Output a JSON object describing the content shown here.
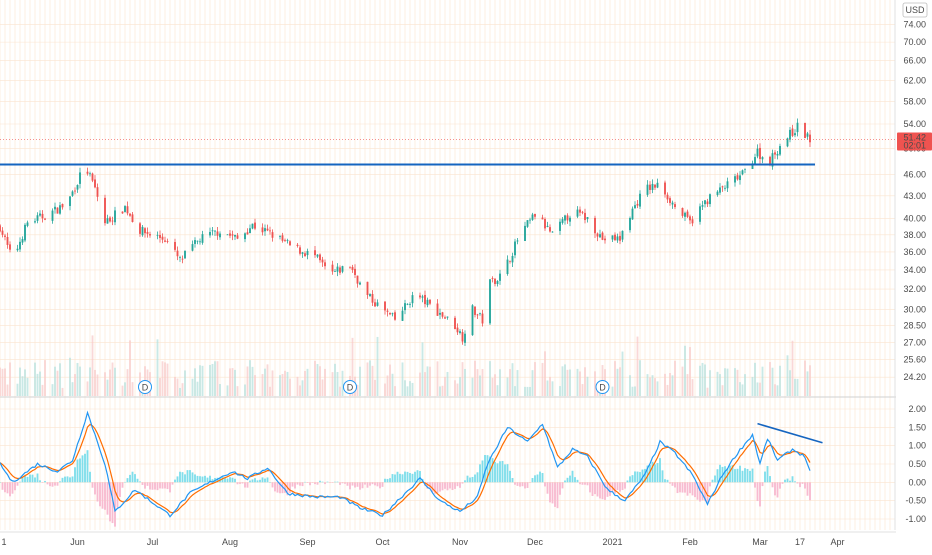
{
  "currency_label": "USD",
  "last_price_label": "51.42",
  "countdown_label": "02:01",
  "colors": {
    "up": "#26a69a",
    "down": "#ef5350",
    "trendline": "#1565c0",
    "macd_line": "#2196f3",
    "signal_line": "#ff6d00",
    "hist_up": "#80deea",
    "hist_down": "#f8bbd0",
    "price_badge": "#ef5350",
    "grid": "#fbe4cf"
  },
  "chart_data": [
    {
      "type": "candlestick",
      "title": "",
      "scale": "log",
      "ylim": [
        22.8,
        80
      ],
      "y_ticks": [
        "24.20",
        "25.60",
        "27.00",
        "28.50",
        "30.00",
        "32.00",
        "34.00",
        "36.00",
        "38.00",
        "40.00",
        "43.00",
        "46.00",
        "50.00",
        "54.00",
        "58.00",
        "62.00",
        "66.00",
        "70.00",
        "74.00"
      ],
      "x_ticks": [
        "1",
        "Jun",
        "Jul",
        "Aug",
        "Sep",
        "Oct",
        "Nov",
        "Dec",
        "2021",
        "Feb",
        "Mar",
        "17",
        "Apr"
      ],
      "anchors": [
        {
          "date": "May 1",
          "close": 39.0
        },
        {
          "date": "May 6",
          "close": 35.0
        },
        {
          "date": "May 12",
          "close": 39.5
        },
        {
          "date": "May 20",
          "close": 40.5
        },
        {
          "date": "May 28",
          "close": 42.0
        },
        {
          "date": "Jun 4",
          "close": 47.3
        },
        {
          "date": "Jun 8",
          "close": 44.0
        },
        {
          "date": "Jun 12",
          "close": 39.5
        },
        {
          "date": "Jun 20",
          "close": 41.5
        },
        {
          "date": "Jun 26",
          "close": 38.5
        },
        {
          "date": "Jul 6",
          "close": 37.5
        },
        {
          "date": "Jul 12",
          "close": 35.0
        },
        {
          "date": "Jul 20",
          "close": 37.5
        },
        {
          "date": "Jul 28",
          "close": 38.5
        },
        {
          "date": "Aug 4",
          "close": 37.5
        },
        {
          "date": "Aug 10",
          "close": 39.2
        },
        {
          "date": "Aug 18",
          "close": 38.0
        },
        {
          "date": "Aug 26",
          "close": 36.5
        },
        {
          "date": "Sep 4",
          "close": 35.5
        },
        {
          "date": "Sep 10",
          "close": 33.5
        },
        {
          "date": "Sep 18",
          "close": 34.5
        },
        {
          "date": "Sep 24",
          "close": 31.5
        },
        {
          "date": "Oct 1",
          "close": 30.0
        },
        {
          "date": "Oct 6",
          "close": 29.0
        },
        {
          "date": "Oct 14",
          "close": 31.5
        },
        {
          "date": "Oct 22",
          "close": 30.0
        },
        {
          "date": "Oct 30",
          "close": 28.5
        },
        {
          "date": "Nov 2",
          "close": 27.5
        },
        {
          "date": "Nov 6",
          "close": 30.0
        },
        {
          "date": "Nov 10",
          "close": 29.0
        },
        {
          "date": "Nov 12",
          "close": 32.5
        },
        {
          "date": "Nov 18",
          "close": 33.5
        },
        {
          "date": "Nov 25",
          "close": 38.0
        },
        {
          "date": "Dec 1",
          "close": 40.5
        },
        {
          "date": "Dec 8",
          "close": 38.0
        },
        {
          "date": "Dec 16",
          "close": 41.0
        },
        {
          "date": "Dec 22",
          "close": 40.0
        },
        {
          "date": "Dec 28",
          "close": 37.5
        },
        {
          "date": "Jan 4",
          "close": 37.5
        },
        {
          "date": "Jan 8",
          "close": 40.5
        },
        {
          "date": "Jan 14",
          "close": 44.0
        },
        {
          "date": "Jan 20",
          "close": 44.5
        },
        {
          "date": "Jan 26",
          "close": 41.5
        },
        {
          "date": "Feb 1",
          "close": 39.5
        },
        {
          "date": "Feb 8",
          "close": 42.5
        },
        {
          "date": "Feb 16",
          "close": 44.5
        },
        {
          "date": "Feb 22",
          "close": 46.0
        },
        {
          "date": "Feb 28",
          "close": 49.5
        },
        {
          "date": "Mar 4",
          "close": 47.5
        },
        {
          "date": "Mar 10",
          "close": 51.0
        },
        {
          "date": "Mar 16",
          "close": 53.5
        },
        {
          "date": "Mar 21",
          "close": 51.42
        }
      ],
      "horizontal_level": 47.5
    },
    {
      "type": "bar",
      "title": "",
      "series": [
        {
          "values": "volume histogram, no scale shown"
        }
      ],
      "dividend_markers": [
        {
          "date": "Jun 28",
          "label": "D"
        },
        {
          "date": "Sep 18",
          "label": "D"
        },
        {
          "date": "Dec 28",
          "label": "D"
        }
      ]
    },
    {
      "type": "line",
      "title": "",
      "ylim": [
        -1.3,
        2.3
      ],
      "y_ticks": [
        "-1.00",
        "-0.50",
        "0.00",
        "0.50",
        "1.00",
        "1.50",
        "2.00"
      ],
      "macd_anchors": [
        {
          "date": "May 1",
          "value": 0.5
        },
        {
          "date": "May 6",
          "value": 0.0
        },
        {
          "date": "May 16",
          "value": 0.5
        },
        {
          "date": "May 24",
          "value": 0.3
        },
        {
          "date": "May 30",
          "value": 0.6
        },
        {
          "date": "Jun 5",
          "value": 1.9
        },
        {
          "date": "Jun 12",
          "value": 0.5
        },
        {
          "date": "Jun 16",
          "value": -0.8
        },
        {
          "date": "Jun 24",
          "value": -0.2
        },
        {
          "date": "Jun 30",
          "value": -0.5
        },
        {
          "date": "Jul 8",
          "value": -0.9
        },
        {
          "date": "Jul 16",
          "value": -0.3
        },
        {
          "date": "Jul 24",
          "value": 0.0
        },
        {
          "date": "Aug 2",
          "value": 0.3
        },
        {
          "date": "Aug 8",
          "value": 0.1
        },
        {
          "date": "Aug 16",
          "value": 0.4
        },
        {
          "date": "Aug 24",
          "value": -0.3
        },
        {
          "date": "Sep 4",
          "value": -0.4
        },
        {
          "date": "Sep 14",
          "value": -0.4
        },
        {
          "date": "Sep 22",
          "value": -0.7
        },
        {
          "date": "Oct 1",
          "value": -0.9
        },
        {
          "date": "Oct 10",
          "value": -0.3
        },
        {
          "date": "Oct 16",
          "value": 0.1
        },
        {
          "date": "Oct 24",
          "value": -0.5
        },
        {
          "date": "Nov 1",
          "value": -0.8
        },
        {
          "date": "Nov 8",
          "value": -0.4
        },
        {
          "date": "Nov 12",
          "value": 0.5
        },
        {
          "date": "Nov 20",
          "value": 1.5
        },
        {
          "date": "Nov 28",
          "value": 1.1
        },
        {
          "date": "Dec 4",
          "value": 1.6
        },
        {
          "date": "Dec 10",
          "value": 0.4
        },
        {
          "date": "Dec 16",
          "value": 0.9
        },
        {
          "date": "Dec 22",
          "value": 0.7
        },
        {
          "date": "Dec 30",
          "value": -0.2
        },
        {
          "date": "Jan 6",
          "value": -0.5
        },
        {
          "date": "Jan 14",
          "value": 0.2
        },
        {
          "date": "Jan 20",
          "value": 1.1
        },
        {
          "date": "Jan 26",
          "value": 0.8
        },
        {
          "date": "Feb 2",
          "value": 0.2
        },
        {
          "date": "Feb 8",
          "value": -0.6
        },
        {
          "date": "Feb 14",
          "value": 0.2
        },
        {
          "date": "Feb 20",
          "value": 0.8
        },
        {
          "date": "Feb 26",
          "value": 1.3
        },
        {
          "date": "Mar 1",
          "value": 0.5
        },
        {
          "date": "Mar 4",
          "value": 1.2
        },
        {
          "date": "Mar 8",
          "value": 0.6
        },
        {
          "date": "Mar 14",
          "value": 0.9
        },
        {
          "date": "Mar 19",
          "value": 0.7
        },
        {
          "date": "Mar 21",
          "value": 0.3
        }
      ],
      "divergence_line": [
        {
          "date": "Feb 28",
          "value": 1.6
        },
        {
          "date": "Mar 22",
          "value": 1.08
        }
      ]
    }
  ]
}
